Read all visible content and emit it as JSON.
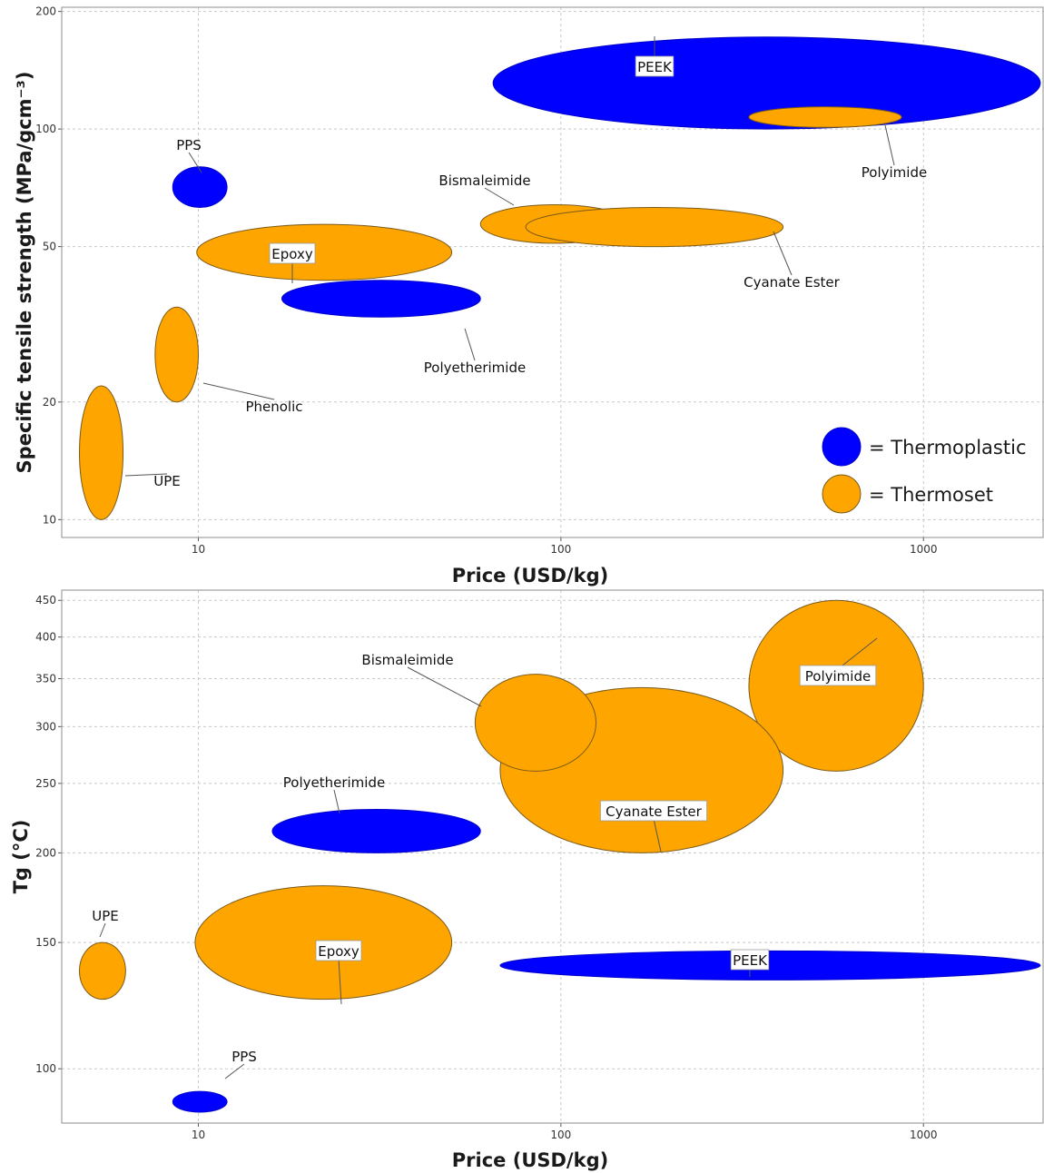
{
  "colors": {
    "Thermoplastic": "#0000ff",
    "Thermoset": "#ffa500",
    "outline": "#7a5a1a"
  },
  "legend": [
    {
      "category": "Thermoplastic",
      "label": "= Thermoplastic"
    },
    {
      "category": "Thermoset",
      "label": "= Thermoset"
    }
  ],
  "chart_data": [
    {
      "type": "scatter",
      "marker": "ellipse",
      "xlabel": "Price (USD/kg)",
      "ylabel": "Specific tensile strength (MPa/gcm⁻³)",
      "xscale": "log",
      "yscale": "log",
      "xlim": [
        4.2,
        2150
      ],
      "ylim": [
        9,
        205
      ],
      "xticks": [
        10,
        100,
        1000
      ],
      "yticks": [
        10,
        20,
        50,
        100,
        200
      ],
      "grid": true,
      "legend_position": "bottom-right",
      "items": [
        {
          "label": "PEEK",
          "category": "Thermoplastic",
          "x": [
            65,
            2100
          ],
          "y": [
            100,
            172
          ]
        },
        {
          "label": "Polyimide",
          "category": "Thermoset",
          "x": [
            330,
            870
          ],
          "y": [
            101,
            114
          ]
        },
        {
          "label": "PPS",
          "category": "Thermoplastic",
          "x": [
            8.5,
            12
          ],
          "y": [
            63,
            80
          ]
        },
        {
          "label": "Bismaleimide",
          "category": "Thermoset",
          "x": [
            60,
            155
          ],
          "y": [
            51,
            64
          ]
        },
        {
          "label": "Cyanate Ester",
          "category": "Thermoset",
          "x": [
            80,
            410
          ],
          "y": [
            50,
            63
          ]
        },
        {
          "label": "Epoxy",
          "category": "Thermoset",
          "x": [
            9.9,
            50
          ],
          "y": [
            41,
            57
          ]
        },
        {
          "label": "Polyetherimide",
          "category": "Thermoplastic",
          "x": [
            17,
            60
          ],
          "y": [
            33,
            41
          ]
        },
        {
          "label": "Phenolic",
          "category": "Thermoset",
          "x": [
            7.6,
            10
          ],
          "y": [
            20,
            35
          ]
        },
        {
          "label": "UPE",
          "category": "Thermoset",
          "x": [
            4.7,
            6.2
          ],
          "y": [
            10,
            22
          ]
        }
      ]
    },
    {
      "type": "scatter",
      "marker": "ellipse",
      "xlabel": "Price (USD/kg)",
      "ylabel": "Tg (°C)",
      "xscale": "log",
      "yscale": "log",
      "xlim": [
        4.2,
        2150
      ],
      "ylim": [
        84,
        465
      ],
      "xticks": [
        10,
        100,
        1000
      ],
      "yticks": [
        100,
        150,
        200,
        250,
        300,
        350,
        400,
        450
      ],
      "grid": true,
      "items": [
        {
          "label": "Polyimide",
          "category": "Thermoset",
          "x": [
            330,
            1000
          ],
          "y": [
            260,
            450
          ]
        },
        {
          "label": "Cyanate Ester",
          "category": "Thermoset",
          "x": [
            68,
            410
          ],
          "y": [
            200,
            340
          ]
        },
        {
          "label": "Bismaleimide",
          "category": "Thermoset",
          "x": [
            58,
            125
          ],
          "y": [
            260,
            355
          ]
        },
        {
          "label": "Polyetherimide",
          "category": "Thermoplastic",
          "x": [
            16,
            60
          ],
          "y": [
            200,
            230
          ]
        },
        {
          "label": "Epoxy",
          "category": "Thermoset",
          "x": [
            9.8,
            50
          ],
          "y": [
            125,
            180
          ]
        },
        {
          "label": "PEEK",
          "category": "Thermoplastic",
          "x": [
            68,
            2100
          ],
          "y": [
            133,
            146
          ]
        },
        {
          "label": "UPE",
          "category": "Thermoset",
          "x": [
            4.7,
            6.3
          ],
          "y": [
            125,
            150
          ]
        },
        {
          "label": "PPS",
          "category": "Thermoplastic",
          "x": [
            8.5,
            12
          ],
          "y": [
            87,
            93
          ]
        }
      ]
    }
  ]
}
